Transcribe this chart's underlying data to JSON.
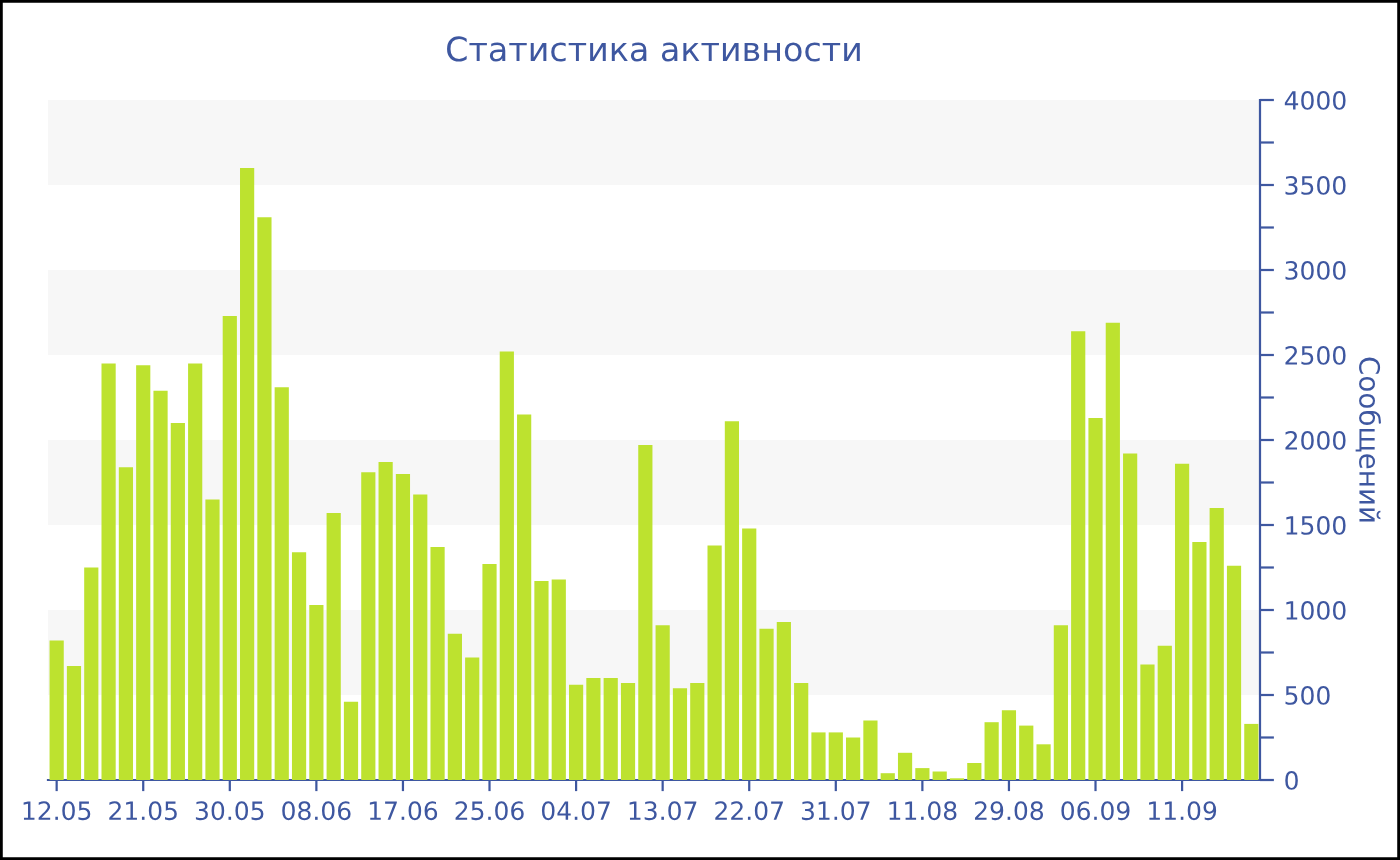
{
  "chart_data": {
    "type": "bar",
    "title": "Статистика активности",
    "ylabel": "Сообщений",
    "categories": [
      "12.05",
      null,
      null,
      null,
      null,
      "21.05",
      null,
      null,
      null,
      null,
      "30.05",
      null,
      null,
      null,
      null,
      "08.06",
      null,
      null,
      null,
      null,
      "17.06",
      null,
      null,
      null,
      null,
      "25.06",
      null,
      null,
      null,
      null,
      "04.07",
      null,
      null,
      null,
      null,
      "13.07",
      null,
      null,
      null,
      null,
      "22.07",
      null,
      null,
      null,
      null,
      "31.07",
      null,
      null,
      null,
      null,
      "11.08",
      null,
      null,
      null,
      null,
      "29.08",
      null,
      null,
      null,
      null,
      "06.09",
      null,
      null,
      null,
      null,
      "11.09",
      null,
      null,
      null,
      null
    ],
    "values": [
      820,
      670,
      1250,
      2450,
      1840,
      2440,
      2290,
      2100,
      2450,
      1650,
      2730,
      3600,
      3310,
      2310,
      1340,
      1030,
      1570,
      460,
      1810,
      1870,
      1800,
      1680,
      1370,
      860,
      720,
      1270,
      2520,
      2150,
      1170,
      1180,
      560,
      600,
      600,
      570,
      1970,
      910,
      540,
      570,
      1380,
      2110,
      1480,
      890,
      930,
      570,
      280,
      280,
      250,
      350,
      40,
      160,
      70,
      50,
      10,
      100,
      340,
      410,
      320,
      210,
      910,
      2640,
      2130,
      2690,
      1920,
      680,
      790,
      1860,
      1400,
      1600,
      1260,
      330
    ],
    "color": "#bde22f",
    "ylim": [
      0,
      4000
    ],
    "yticks": [
      0,
      {
        "value": 250,
        "label": null
      },
      500,
      {
        "value": 750,
        "label": null
      },
      1000,
      {
        "value": 1250,
        "label": null
      },
      1500,
      {
        "value": 1750,
        "label": null
      },
      2000,
      {
        "value": 2250,
        "label": null
      },
      2500,
      {
        "value": 2750,
        "label": null
      },
      3000,
      {
        "value": 3250,
        "label": null
      },
      3500,
      {
        "value": 3750,
        "label": null
      },
      4000
    ],
    "bands": [
      {
        "axis": "y",
        "from": 500,
        "to": 1000,
        "color": "#f7f7f7"
      },
      {
        "axis": "y",
        "from": 1500,
        "to": 2000,
        "color": "#f7f7f7"
      },
      {
        "axis": "y",
        "from": 2500,
        "to": 3000,
        "color": "#f7f7f7"
      },
      {
        "axis": "y",
        "from": 3500,
        "to": 4000,
        "color": "#f7f7f7"
      }
    ],
    "grid": false,
    "legend": false
  }
}
